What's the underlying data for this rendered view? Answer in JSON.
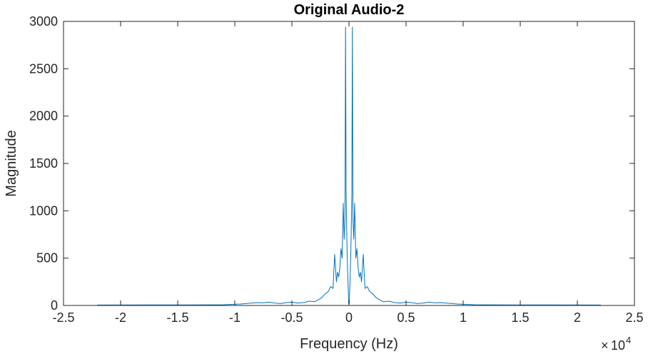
{
  "chart_data": {
    "type": "line",
    "title": "Original Audio-2",
    "xlabel": "Frequency (Hz)",
    "ylabel": "Magnitude",
    "xlim": [
      -25000,
      25000
    ],
    "ylim": [
      0,
      3000
    ],
    "x_exponent_label": {
      "times": "×",
      "base": "10",
      "power": "4"
    },
    "xtick_values": [
      -25000,
      -20000,
      -15000,
      -10000,
      -5000,
      0,
      5000,
      10000,
      15000,
      20000,
      25000
    ],
    "xtick_labels": [
      "-2.5",
      "-2",
      "-1.5",
      "-1",
      "-0.5",
      "0",
      "0.5",
      "1",
      "1.5",
      "2",
      "2.5"
    ],
    "ytick_values": [
      0,
      500,
      1000,
      1500,
      2000,
      2500,
      3000
    ],
    "ytick_labels": [
      "0",
      "500",
      "1000",
      "1500",
      "2000",
      "2500",
      "3000"
    ],
    "grid": false,
    "box": true,
    "series": [
      {
        "color": "#0072bd",
        "x": [
          -22050,
          -18000,
          -14000,
          -11000,
          -9500,
          -8500,
          -8000,
          -7500,
          -7000,
          -6500,
          -6000,
          -5500,
          -5000,
          -4500,
          -4000,
          -3500,
          -3000,
          -2700,
          -2400,
          -2100,
          -1800,
          -1600,
          -1400,
          -1250,
          -1100,
          -1000,
          -900,
          -800,
          -700,
          -600,
          -500,
          -420,
          -350,
          -300,
          -250,
          -200,
          -150,
          -100,
          -60,
          -30,
          0,
          30,
          60,
          100,
          150,
          200,
          250,
          300,
          350,
          420,
          500,
          600,
          700,
          800,
          900,
          1000,
          1100,
          1250,
          1400,
          1600,
          1800,
          2100,
          2400,
          2700,
          3000,
          3500,
          4000,
          4500,
          5000,
          5500,
          6000,
          6500,
          7000,
          7500,
          8000,
          8500,
          9500,
          11000,
          14000,
          18000,
          22050
        ],
        "y": [
          5,
          6,
          6,
          8,
          15,
          25,
          30,
          28,
          35,
          25,
          20,
          30,
          35,
          25,
          30,
          45,
          40,
          60,
          80,
          120,
          150,
          200,
          180,
          540,
          250,
          350,
          300,
          400,
          600,
          500,
          1080,
          700,
          900,
          2940,
          1200,
          800,
          500,
          300,
          150,
          30,
          10,
          30,
          150,
          300,
          500,
          800,
          1200,
          2940,
          900,
          700,
          1080,
          500,
          600,
          400,
          300,
          350,
          250,
          540,
          180,
          200,
          150,
          120,
          80,
          60,
          40,
          45,
          30,
          25,
          35,
          30,
          20,
          25,
          35,
          28,
          30,
          25,
          15,
          8,
          6,
          6,
          5
        ]
      }
    ]
  }
}
